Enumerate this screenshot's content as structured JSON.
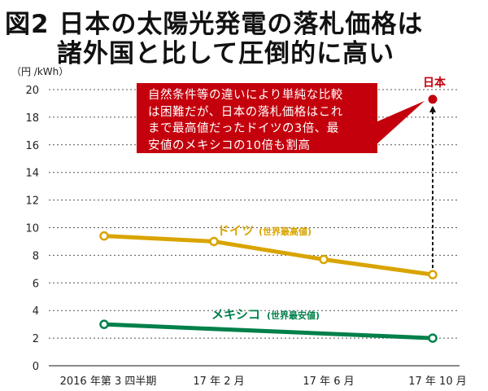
{
  "title": {
    "line1": "図2 日本の太陽光発電の落札価格は",
    "line2": "諸外国と比して圧倒的に高い"
  },
  "callout": {
    "lines": [
      "自然条件等の違いにより単純な比較",
      "は困難だが、日本の落札価格はこれ",
      "まで最高値だったドイツの3倍、最",
      "安値のメキシコの10倍も割高"
    ]
  },
  "colors": {
    "germany": "#d9a400",
    "mexico": "#00804a",
    "japan": "#c4000c",
    "callout": "#c4000c"
  },
  "chart_data": {
    "type": "line",
    "ylabel": "（円 /kWh）",
    "ylim": [
      0,
      20
    ],
    "yticks": [
      "0",
      "2",
      "4",
      "6",
      "8",
      "10",
      "12",
      "14",
      "16",
      "18",
      "20"
    ],
    "categories": [
      "2016 年第 3 四半期",
      "17 年 2 月",
      "17 年 6 月",
      "17 年 10 月"
    ],
    "grid": true,
    "series": [
      {
        "name": "ドイツ",
        "note": "(世界最高値)",
        "values": [
          9.4,
          9.0,
          7.7,
          6.6
        ]
      },
      {
        "name": "メキシコ",
        "note": "(世界最安値)",
        "values": [
          3.0,
          null,
          null,
          2.0
        ]
      },
      {
        "name": "日本",
        "note": "",
        "values": [
          null,
          null,
          null,
          19.3
        ]
      }
    ]
  }
}
